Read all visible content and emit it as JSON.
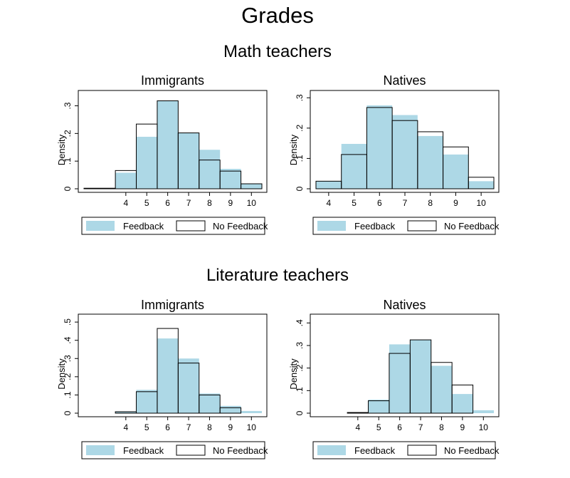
{
  "figure": {
    "title": "Grades",
    "sections": [
      {
        "title": "Math teachers"
      },
      {
        "title": "Literature teachers"
      }
    ]
  },
  "colors": {
    "feedback_fill": "#add8e6",
    "no_feedback_outline": "#000000"
  },
  "chart_data": [
    {
      "type": "bar",
      "section": "Math teachers",
      "title": "Immigrants",
      "ylabel": "Density",
      "xlabel": "",
      "x_ticks": [
        4,
        5,
        6,
        7,
        8,
        9,
        10
      ],
      "y_ticks": [
        {
          "value": 0,
          "label": "0"
        },
        {
          "value": 0.1,
          "label": ".1"
        },
        {
          "value": 0.2,
          "label": ".2"
        },
        {
          "value": 0.3,
          "label": ".3"
        }
      ],
      "xlim": [
        2,
        10.5
      ],
      "ylim": [
        0,
        0.34
      ],
      "bins": [
        [
          2,
          3.5
        ],
        [
          3.5,
          4.5
        ],
        [
          4.5,
          5.5
        ],
        [
          5.5,
          6.5
        ],
        [
          6.5,
          7.5
        ],
        [
          7.5,
          8.5
        ],
        [
          8.5,
          9.5
        ],
        [
          9.5,
          10.5
        ]
      ],
      "series": [
        {
          "name": "Feedback",
          "style": "filled",
          "values": [
            0.002,
            0.058,
            0.188,
            0.318,
            0.202,
            0.141,
            0.072,
            0.018
          ]
        },
        {
          "name": "No Feedback",
          "style": "outline",
          "values": [
            0.002,
            0.066,
            0.234,
            0.318,
            0.202,
            0.104,
            0.064,
            0.018
          ]
        }
      ],
      "legend": [
        "Feedback",
        "No Feedback"
      ],
      "legend_position": "bottom"
    },
    {
      "type": "bar",
      "section": "Math teachers",
      "title": "Natives",
      "ylabel": "Density",
      "xlabel": "",
      "x_ticks": [
        4,
        5,
        6,
        7,
        8,
        9,
        10
      ],
      "y_ticks": [
        {
          "value": 0,
          "label": "0"
        },
        {
          "value": 0.1,
          "label": ".1"
        },
        {
          "value": 0.2,
          "label": ".2"
        },
        {
          "value": 0.3,
          "label": ".3"
        }
      ],
      "xlim": [
        3.5,
        10.5
      ],
      "ylim": [
        0,
        0.31
      ],
      "bins": [
        [
          3.5,
          4.5
        ],
        [
          4.5,
          5.5
        ],
        [
          5.5,
          6.5
        ],
        [
          6.5,
          7.5
        ],
        [
          7.5,
          8.5
        ],
        [
          8.5,
          9.5
        ],
        [
          9.5,
          10.5
        ]
      ],
      "series": [
        {
          "name": "Feedback",
          "style": "filled",
          "values": [
            0.025,
            0.148,
            0.275,
            0.243,
            0.174,
            0.113,
            0.025
          ]
        },
        {
          "name": "No Feedback",
          "style": "outline",
          "values": [
            0.025,
            0.113,
            0.268,
            0.225,
            0.188,
            0.138,
            0.038
          ]
        }
      ],
      "legend": [
        "Feedback",
        "No Feedback"
      ],
      "legend_position": "bottom"
    },
    {
      "type": "bar",
      "section": "Literature teachers",
      "title": "Immigrants",
      "ylabel": "Density",
      "xlabel": "",
      "x_ticks": [
        4,
        5,
        6,
        7,
        8,
        9,
        10
      ],
      "y_ticks": [
        {
          "value": 0,
          "label": "0"
        },
        {
          "value": 0.1,
          "label": ".1"
        },
        {
          "value": 0.2,
          "label": ".2"
        },
        {
          "value": 0.3,
          "label": ".3"
        },
        {
          "value": 0.4,
          "label": ".4"
        },
        {
          "value": 0.5,
          "label": ".5"
        }
      ],
      "xlim": [
        2,
        10.5
      ],
      "ylim": [
        0,
        0.52
      ],
      "bins": [
        [
          2,
          3.5
        ],
        [
          3.5,
          4.5
        ],
        [
          4.5,
          5.5
        ],
        [
          5.5,
          6.5
        ],
        [
          6.5,
          7.5
        ],
        [
          7.5,
          8.5
        ],
        [
          8.5,
          9.5
        ],
        [
          9.5,
          10.5
        ]
      ],
      "series": [
        {
          "name": "Feedback",
          "style": "filled",
          "values": [
            0.0,
            0.008,
            0.128,
            0.41,
            0.3,
            0.108,
            0.04,
            0.012
          ]
        },
        {
          "name": "No Feedback",
          "style": "outline",
          "values": [
            0.0,
            0.008,
            0.118,
            0.465,
            0.275,
            0.1,
            0.03,
            0.0
          ]
        }
      ],
      "legend": [
        "Feedback",
        "No Feedback"
      ],
      "legend_position": "bottom"
    },
    {
      "type": "bar",
      "section": "Literature teachers",
      "title": "Natives",
      "ylabel": "Density",
      "xlabel": "",
      "x_ticks": [
        4,
        5,
        6,
        7,
        8,
        9,
        10
      ],
      "y_ticks": [
        {
          "value": 0,
          "label": "0"
        },
        {
          "value": 0.1,
          "label": ".1"
        },
        {
          "value": 0.2,
          "label": ".2"
        },
        {
          "value": 0.3,
          "label": ".3"
        },
        {
          "value": 0.4,
          "label": ".4"
        }
      ],
      "xlim": [
        2,
        10.5
      ],
      "ylim": [
        0,
        0.42
      ],
      "bins": [
        [
          2,
          3.5
        ],
        [
          3.5,
          4.5
        ],
        [
          4.5,
          5.5
        ],
        [
          5.5,
          6.5
        ],
        [
          6.5,
          7.5
        ],
        [
          7.5,
          8.5
        ],
        [
          8.5,
          9.5
        ],
        [
          9.5,
          10.5
        ]
      ],
      "series": [
        {
          "name": "Feedback",
          "style": "filled",
          "values": [
            0.0,
            0.003,
            0.06,
            0.305,
            0.325,
            0.21,
            0.085,
            0.013
          ]
        },
        {
          "name": "No Feedback",
          "style": "outline",
          "values": [
            0.0,
            0.003,
            0.055,
            0.265,
            0.325,
            0.225,
            0.125,
            0.0
          ]
        }
      ],
      "legend": [
        "Feedback",
        "No Feedback"
      ],
      "legend_position": "bottom"
    }
  ]
}
